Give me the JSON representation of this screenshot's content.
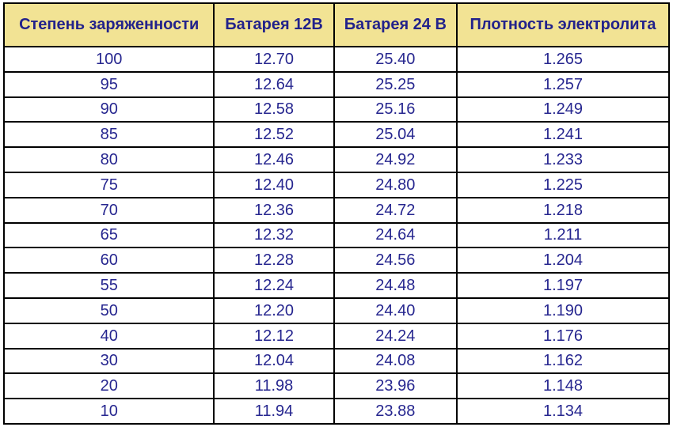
{
  "colors": {
    "header_bg": "#F2E394",
    "header_text": "#22228B",
    "cell_text": "#26268F",
    "border": "#000000",
    "row_bg": "#FFFFFF",
    "page_bg": "#FFFFFF"
  },
  "table": {
    "headers": [
      "Степень заряженности",
      "Батарея 12В",
      "Батарея 24 В",
      "Плотность электролита"
    ],
    "rows": [
      [
        "100",
        "12.70",
        "25.40",
        "1.265"
      ],
      [
        "95",
        "12.64",
        "25.25",
        "1.257"
      ],
      [
        "90",
        "12.58",
        "25.16",
        "1.249"
      ],
      [
        "85",
        "12.52",
        "25.04",
        "1.241"
      ],
      [
        "80",
        "12.46",
        "24.92",
        "1.233"
      ],
      [
        "75",
        "12.40",
        "24.80",
        "1.225"
      ],
      [
        "70",
        "12.36",
        "24.72",
        "1.218"
      ],
      [
        "65",
        "12.32",
        "24.64",
        "1.211"
      ],
      [
        "60",
        "12.28",
        "24.56",
        "1.204"
      ],
      [
        "55",
        "12.24",
        "24.48",
        "1.197"
      ],
      [
        "50",
        "12.20",
        "24.40",
        "1.190"
      ],
      [
        "40",
        "12.12",
        "24.24",
        "1.176"
      ],
      [
        "30",
        "12.04",
        "24.08",
        "1.162"
      ],
      [
        "20",
        "11.98",
        "23.96",
        "1.148"
      ],
      [
        "10",
        "11.94",
        "23.88",
        "1.134"
      ]
    ]
  },
  "chart_data": {
    "type": "table",
    "columns": [
      "Степень заряженности",
      "Батарея 12В",
      "Батарея 24 В",
      "Плотность электролита"
    ],
    "charge_percent": [
      100,
      95,
      90,
      85,
      80,
      75,
      70,
      65,
      60,
      55,
      50,
      40,
      30,
      20,
      10
    ],
    "battery_12v_volts": [
      12.7,
      12.64,
      12.58,
      12.52,
      12.46,
      12.4,
      12.36,
      12.32,
      12.28,
      12.24,
      12.2,
      12.12,
      12.04,
      11.98,
      11.94
    ],
    "battery_24v_volts": [
      25.4,
      25.25,
      25.16,
      25.04,
      24.92,
      24.8,
      24.72,
      24.64,
      24.56,
      24.48,
      24.4,
      24.24,
      24.08,
      23.96,
      23.88
    ],
    "electrolyte_density": [
      1.265,
      1.257,
      1.249,
      1.241,
      1.233,
      1.225,
      1.218,
      1.211,
      1.204,
      1.197,
      1.19,
      1.176,
      1.162,
      1.148,
      1.134
    ],
    "layout": {
      "grid": true,
      "legend": false,
      "header_background": "#F2E394"
    }
  }
}
